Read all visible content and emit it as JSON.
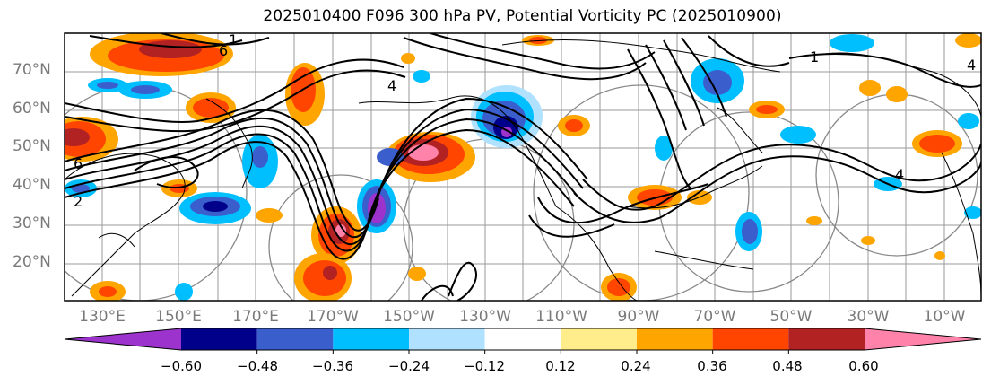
{
  "title": "2025010400 F096 300 hPa PV, Potential Vorticity PC (2025010900)",
  "map": {
    "lat_labels": [
      "70°N",
      "60°N",
      "50°N",
      "40°N",
      "30°N",
      "20°N"
    ],
    "lon_labels": [
      "130°E",
      "150°E",
      "170°E",
      "170°W",
      "150°W",
      "130°W",
      "110°W",
      "90°W",
      "70°W",
      "50°W",
      "30°W",
      "10°W"
    ],
    "contour_labels": [
      "1",
      "6",
      "4",
      "4",
      "6",
      "2",
      "1",
      "4"
    ]
  },
  "colorbar": {
    "ticks": [
      "−0.60",
      "−0.48",
      "−0.36",
      "−0.24",
      "−0.12",
      "0.12",
      "0.24",
      "0.36",
      "0.48",
      "0.60"
    ],
    "colors": [
      "#9b33cc",
      "#00008b",
      "#3a5fcd",
      "#00bfff",
      "#b0e2ff",
      "#ffffff",
      "#ffec8b",
      "#ffa500",
      "#ff4500",
      "#b22222",
      "#ff82ab"
    ]
  }
}
